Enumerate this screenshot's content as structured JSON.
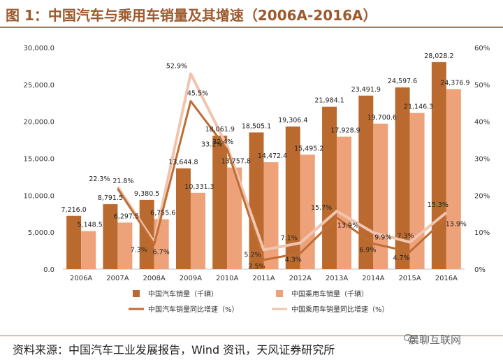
{
  "header": {
    "title": "图 1：中国汽车与乘用车销量及其增速（2006A-2016A）"
  },
  "footer": {
    "source": "资料来源：中国汽车工业发展报告，Wind 资讯，天风证券研究所",
    "watermark": "晨聊互联网"
  },
  "colors": {
    "auto_bar": "#bb6a2f",
    "pass_bar": "#eea27a",
    "auto_line": "#bf6d33",
    "pass_line": "#f0c4ae",
    "axis_text": "#333333",
    "title": "#9c5a2e"
  },
  "chart_data": {
    "type": "bar",
    "title": "中国汽车与乘用车销量及其增速（2006A-2016A）",
    "categories": [
      "2006A",
      "2007A",
      "2008A",
      "2009A",
      "2010A",
      "2011A",
      "2012A",
      "2013A",
      "2014A",
      "2015A",
      "2016A"
    ],
    "y_left": {
      "min": 0,
      "max": 30000,
      "ticks": [
        "0.0",
        "5,000.0",
        "10,000.0",
        "15,000.0",
        "20,000.0",
        "25,000.0",
        "30,000.0"
      ]
    },
    "y_right": {
      "min": 0,
      "max": 60,
      "ticks": [
        "0%",
        "10%",
        "20%",
        "30%",
        "40%",
        "50%",
        "60%"
      ]
    },
    "series": [
      {
        "name": "中国汽车销量（千辆）",
        "kind": "bar",
        "axis": "left",
        "values": [
          7216.0,
          8791.5,
          9380.5,
          13644.8,
          18061.9,
          18505.1,
          19306.4,
          21984.1,
          23491.9,
          24597.6,
          28028.2
        ],
        "labels": [
          "7,216.0",
          "8,791.5",
          "9,380.5",
          "13,644.8",
          "18,061.9",
          "18,505.1",
          "19,306.4",
          "21,984.1",
          "23,491.9",
          "24,597.6",
          "28,028.2"
        ]
      },
      {
        "name": "中国乘用车销量（千辆）",
        "kind": "bar",
        "axis": "left",
        "values": [
          5148.5,
          6297.5,
          6755.6,
          10331.3,
          13757.8,
          14472.4,
          15495.2,
          17928.9,
          19700.6,
          21146.3,
          24376.9
        ],
        "labels": [
          "5,148.5",
          "6,297.5",
          "6,755.6",
          "10,331.3",
          "13,757.8",
          "14,472.4",
          "15,495.2",
          "17,928.9",
          "19,700.6",
          "21,146.3",
          "24,376.9"
        ]
      },
      {
        "name": "中国汽车销量同比增速（%）",
        "kind": "line",
        "axis": "right",
        "values": [
          null,
          21.8,
          6.7,
          45.5,
          32.4,
          2.5,
          4.3,
          13.9,
          6.9,
          4.7,
          13.9
        ],
        "labels": [
          "",
          "21.8%",
          "6.7%",
          "45.5%",
          "32.4%",
          "2.5%",
          "4.3%",
          "13.9%",
          "6.9%",
          "4.7%",
          "13.9%"
        ]
      },
      {
        "name": "中国乘用车销量同比增速（%）",
        "kind": "line",
        "axis": "right",
        "values": [
          null,
          22.3,
          7.3,
          52.9,
          33.2,
          5.2,
          7.1,
          15.7,
          9.9,
          7.3,
          15.3
        ],
        "labels": [
          "",
          "22.3%",
          "7.3%",
          "52.9%",
          "33.2%",
          "5.2%",
          "7.1%",
          "15.7%",
          "9.9%",
          "7.3%",
          "15.3%"
        ]
      }
    ],
    "legend": [
      {
        "label": "中国汽车销量（千辆）",
        "kind": "bar",
        "color": "#bb6a2f"
      },
      {
        "label": "中国乘用车销量（千辆）",
        "kind": "bar",
        "color": "#eea27a"
      },
      {
        "label": "中国汽车销量同比增速（%）",
        "kind": "line",
        "color": "#bf6d33"
      },
      {
        "label": "中国乘用车销量同比增速（%）",
        "kind": "line",
        "color": "#f0c4ae"
      }
    ],
    "legend_position": "bottom"
  }
}
